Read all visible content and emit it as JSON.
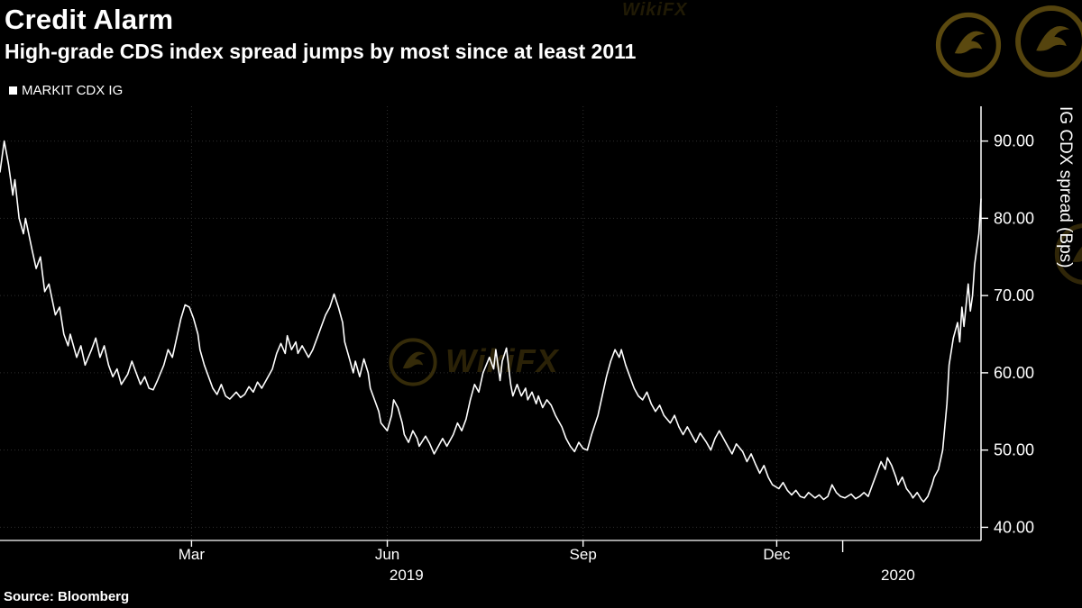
{
  "header": {
    "title": "Credit Alarm",
    "subtitle": "High-grade CDS index spread jumps by most since at least 2011"
  },
  "legend": {
    "items": [
      {
        "label": "MARKIT CDX IG",
        "swatch_color": "#ffffff"
      }
    ]
  },
  "footer": {
    "source_label": "Source: Bloomberg"
  },
  "watermark": {
    "text": "WikiFX",
    "color": "#6b5612"
  },
  "chart_data": {
    "type": "line",
    "title": "Credit Alarm",
    "subtitle": "High-grade CDS index spread jumps by most since at least 2011",
    "ylabel": "IG CDX spread (Bps)",
    "grid": true,
    "background": "#000000",
    "axis_color": "#ffffff",
    "grid_color": "#2e2e2e",
    "x_encoding": "days since 2018-12-01 (axis spans Dec 2018 - early Mar 2020)",
    "x_domain": [
      0,
      461
    ],
    "x_ticks": [
      {
        "day": 90,
        "label": "Mar"
      },
      {
        "day": 182,
        "label": "Jun"
      },
      {
        "day": 274,
        "label": "Sep"
      },
      {
        "day": 365,
        "label": "Dec"
      }
    ],
    "x_year_boundary_day": 396,
    "x_year_labels": [
      {
        "day": 191,
        "label": "2019"
      },
      {
        "day": 422,
        "label": "2020"
      }
    ],
    "ylim": [
      38.3,
      94.5
    ],
    "y_ticks": [
      40,
      50,
      60,
      70,
      80,
      90
    ],
    "y_tick_labels": [
      "40.00",
      "50.00",
      "60.00",
      "70.00",
      "80.00",
      "90.00"
    ],
    "series": [
      {
        "name": "MARKIT CDX IG",
        "color": "#ffffff",
        "points": [
          [
            0,
            86
          ],
          [
            2,
            90
          ],
          [
            4,
            87
          ],
          [
            6,
            83
          ],
          [
            7,
            85
          ],
          [
            9,
            80
          ],
          [
            11,
            78
          ],
          [
            12,
            80
          ],
          [
            15,
            76
          ],
          [
            17,
            73.5
          ],
          [
            19,
            75
          ],
          [
            21,
            70.5
          ],
          [
            23,
            71.5
          ],
          [
            26,
            67.5
          ],
          [
            28,
            68.5
          ],
          [
            30,
            65
          ],
          [
            32,
            63.5
          ],
          [
            33,
            65
          ],
          [
            36,
            62
          ],
          [
            38,
            63.5
          ],
          [
            40,
            61
          ],
          [
            43,
            63
          ],
          [
            45,
            64.5
          ],
          [
            47,
            62
          ],
          [
            49,
            63.5
          ],
          [
            51,
            61
          ],
          [
            53,
            59.5
          ],
          [
            55,
            60.5
          ],
          [
            57,
            58.5
          ],
          [
            60,
            59.8
          ],
          [
            62,
            61.5
          ],
          [
            64,
            60
          ],
          [
            66,
            58.5
          ],
          [
            68,
            59.5
          ],
          [
            70,
            58
          ],
          [
            72,
            57.8
          ],
          [
            74,
            59
          ],
          [
            77,
            61
          ],
          [
            79,
            63
          ],
          [
            81,
            62
          ],
          [
            83,
            64.5
          ],
          [
            85,
            67
          ],
          [
            87,
            68.8
          ],
          [
            89,
            68.5
          ],
          [
            91,
            67
          ],
          [
            93,
            65
          ],
          [
            94,
            63
          ],
          [
            96,
            61
          ],
          [
            98,
            59.5
          ],
          [
            100,
            58
          ],
          [
            102,
            57.2
          ],
          [
            104,
            58.5
          ],
          [
            106,
            57
          ],
          [
            108,
            56.6
          ],
          [
            111,
            57.5
          ],
          [
            113,
            56.8
          ],
          [
            115,
            57.2
          ],
          [
            117,
            58.2
          ],
          [
            119,
            57.5
          ],
          [
            121,
            58.8
          ],
          [
            123,
            58
          ],
          [
            125,
            59
          ],
          [
            128,
            60.5
          ],
          [
            130,
            62.5
          ],
          [
            132,
            63.8
          ],
          [
            134,
            62.5
          ],
          [
            135,
            64.8
          ],
          [
            137,
            63
          ],
          [
            139,
            64
          ],
          [
            140,
            62.5
          ],
          [
            142,
            63.5
          ],
          [
            145,
            62
          ],
          [
            147,
            63
          ],
          [
            149,
            64.5
          ],
          [
            151,
            66
          ],
          [
            153,
            67.5
          ],
          [
            155,
            68.5
          ],
          [
            157,
            70.2
          ],
          [
            159,
            68.5
          ],
          [
            161,
            66.5
          ],
          [
            162,
            64
          ],
          [
            164,
            62
          ],
          [
            166,
            60
          ],
          [
            167,
            61.5
          ],
          [
            169,
            59.5
          ],
          [
            171,
            61.8
          ],
          [
            173,
            60
          ],
          [
            174,
            58
          ],
          [
            176,
            56.5
          ],
          [
            178,
            55
          ],
          [
            179,
            53.5
          ],
          [
            182,
            52.5
          ],
          [
            184,
            54.5
          ],
          [
            185,
            56.5
          ],
          [
            187,
            55.5
          ],
          [
            189,
            53.5
          ],
          [
            190,
            52
          ],
          [
            192,
            51
          ],
          [
            194,
            52.5
          ],
          [
            196,
            51.5
          ],
          [
            197,
            50.5
          ],
          [
            200,
            51.8
          ],
          [
            202,
            50.8
          ],
          [
            204,
            49.5
          ],
          [
            206,
            50.5
          ],
          [
            208,
            51.5
          ],
          [
            210,
            50.5
          ],
          [
            213,
            52
          ],
          [
            215,
            53.5
          ],
          [
            217,
            52.5
          ],
          [
            219,
            54
          ],
          [
            221,
            56.5
          ],
          [
            223,
            58.5
          ],
          [
            225,
            57.5
          ],
          [
            227,
            60
          ],
          [
            230,
            62
          ],
          [
            232,
            60.5
          ],
          [
            233,
            63
          ],
          [
            235,
            59
          ],
          [
            236,
            61.5
          ],
          [
            238,
            63.2
          ],
          [
            240,
            58.5
          ],
          [
            241,
            57
          ],
          [
            243,
            58.5
          ],
          [
            245,
            57
          ],
          [
            247,
            58
          ],
          [
            248,
            56.5
          ],
          [
            250,
            57.5
          ],
          [
            252,
            56
          ],
          [
            253,
            57
          ],
          [
            255,
            55.5
          ],
          [
            257,
            56.5
          ],
          [
            259,
            55.8
          ],
          [
            261,
            54.5
          ],
          [
            264,
            53
          ],
          [
            266,
            51.5
          ],
          [
            268,
            50.5
          ],
          [
            270,
            49.8
          ],
          [
            272,
            51
          ],
          [
            274,
            50.2
          ],
          [
            276,
            50
          ],
          [
            278,
            52
          ],
          [
            281,
            54.5
          ],
          [
            283,
            57
          ],
          [
            285,
            59.5
          ],
          [
            287,
            61.5
          ],
          [
            289,
            63
          ],
          [
            291,
            62
          ],
          [
            292,
            63
          ],
          [
            294,
            61
          ],
          [
            296,
            59.5
          ],
          [
            298,
            58
          ],
          [
            300,
            57
          ],
          [
            302,
            56.5
          ],
          [
            304,
            57.5
          ],
          [
            306,
            56
          ],
          [
            308,
            55
          ],
          [
            310,
            55.8
          ],
          [
            312,
            54.5
          ],
          [
            315,
            53.5
          ],
          [
            317,
            54.5
          ],
          [
            319,
            53
          ],
          [
            321,
            52
          ],
          [
            323,
            53
          ],
          [
            325,
            52
          ],
          [
            327,
            51
          ],
          [
            329,
            52.2
          ],
          [
            332,
            51
          ],
          [
            334,
            50
          ],
          [
            336,
            51.5
          ],
          [
            338,
            52.5
          ],
          [
            340,
            51.5
          ],
          [
            342,
            50.5
          ],
          [
            344,
            49.5
          ],
          [
            346,
            50.8
          ],
          [
            349,
            49.8
          ],
          [
            351,
            48.5
          ],
          [
            353,
            49.5
          ],
          [
            355,
            48.2
          ],
          [
            357,
            47
          ],
          [
            359,
            48
          ],
          [
            361,
            46.5
          ],
          [
            363,
            45.5
          ],
          [
            366,
            45
          ],
          [
            368,
            45.8
          ],
          [
            370,
            44.8
          ],
          [
            372,
            44.2
          ],
          [
            374,
            44.8
          ],
          [
            376,
            44
          ],
          [
            378,
            43.8
          ],
          [
            380,
            44.5
          ],
          [
            383,
            43.8
          ],
          [
            385,
            44.2
          ],
          [
            387,
            43.6
          ],
          [
            389,
            44
          ],
          [
            391,
            45.5
          ],
          [
            393,
            44.5
          ],
          [
            395,
            44
          ],
          [
            397,
            43.8
          ],
          [
            400,
            44.3
          ],
          [
            402,
            43.7
          ],
          [
            404,
            44
          ],
          [
            406,
            44.5
          ],
          [
            408,
            44
          ],
          [
            410,
            45.5
          ],
          [
            412,
            47
          ],
          [
            414,
            48.5
          ],
          [
            416,
            47.5
          ],
          [
            417,
            49
          ],
          [
            419,
            48
          ],
          [
            421,
            46.5
          ],
          [
            422,
            45.5
          ],
          [
            424,
            46.5
          ],
          [
            426,
            45
          ],
          [
            428,
            44.3
          ],
          [
            429,
            43.8
          ],
          [
            431,
            44.5
          ],
          [
            433,
            43.6
          ],
          [
            434,
            43.3
          ],
          [
            436,
            44
          ],
          [
            438,
            45.5
          ],
          [
            439,
            46.5
          ],
          [
            441,
            47.5
          ],
          [
            443,
            50
          ],
          [
            445,
            56
          ],
          [
            446,
            61
          ],
          [
            448,
            64.5
          ],
          [
            450,
            66.5
          ],
          [
            451,
            64
          ],
          [
            452,
            68.5
          ],
          [
            453,
            66
          ],
          [
            455,
            71.5
          ],
          [
            456,
            68
          ],
          [
            457,
            70
          ],
          [
            458,
            74
          ],
          [
            460,
            78
          ],
          [
            461,
            82.5
          ]
        ]
      }
    ]
  }
}
